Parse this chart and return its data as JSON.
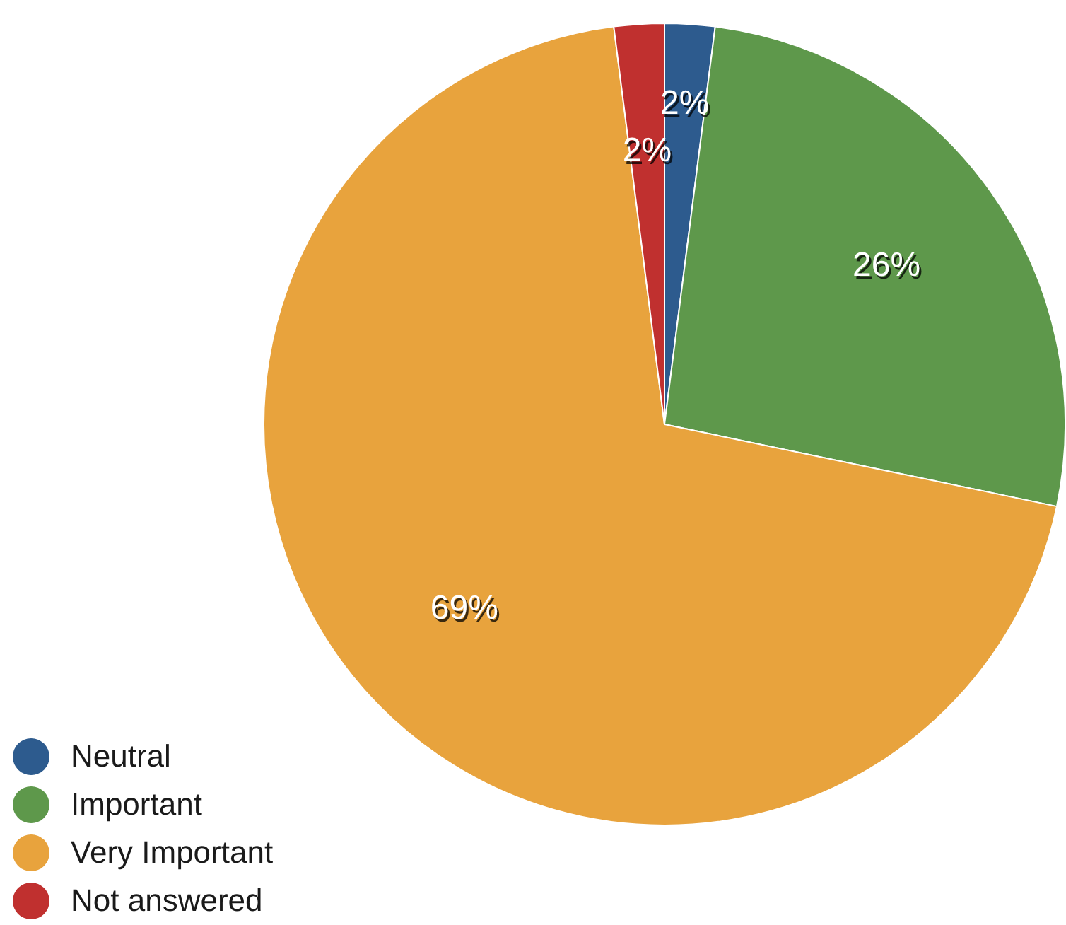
{
  "chart_data": {
    "type": "pie",
    "categories": [
      "Neutral",
      "Important",
      "Very Important",
      "Not answered"
    ],
    "values": [
      2,
      26,
      69,
      2
    ],
    "colors": [
      "#2d5b8e",
      "#5e984b",
      "#e8a33d",
      "#c0302f"
    ],
    "value_labels": [
      "2%",
      "26%",
      "69%",
      "2%"
    ],
    "legend": "bottom left"
  }
}
